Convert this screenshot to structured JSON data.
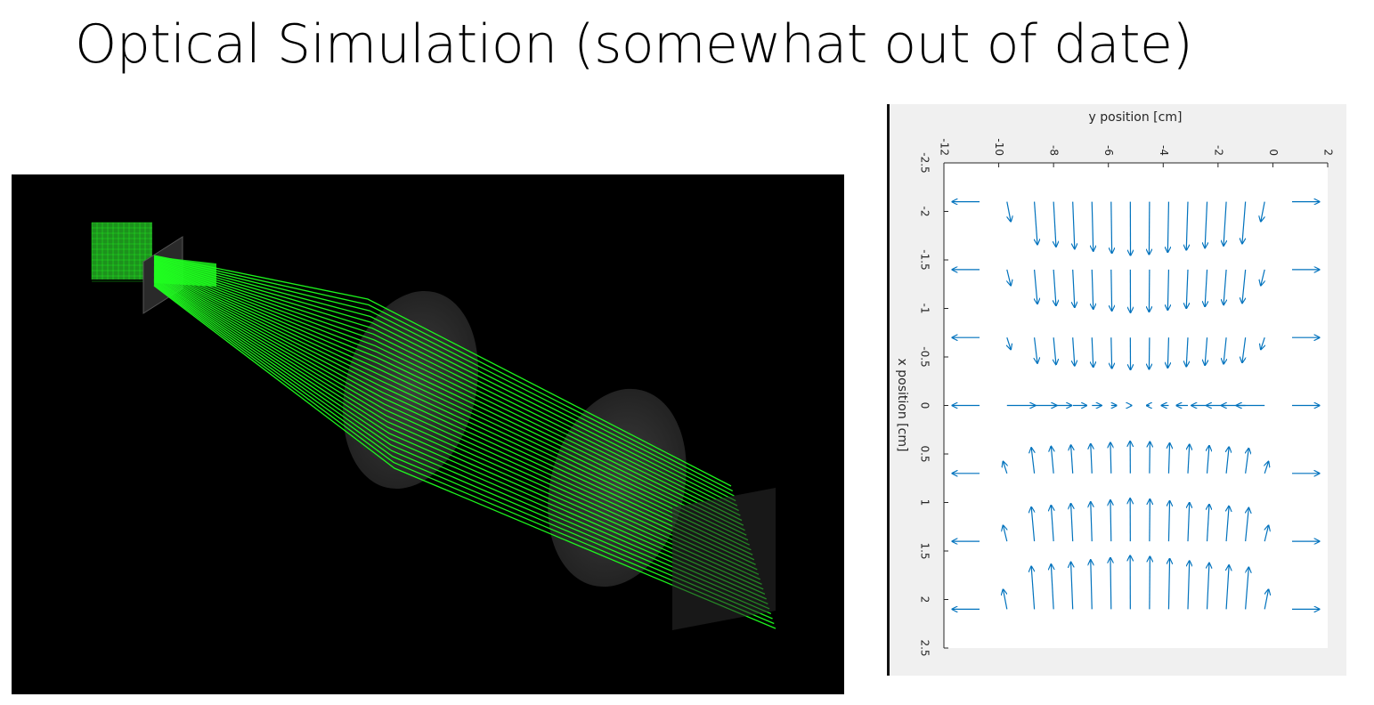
{
  "slide": {
    "title": "Optical Simulation (somewhat out of date)"
  },
  "ray_trace": {
    "background": "#000000",
    "ray_color": "#1fff1f",
    "lens_color": "#3a3a3a"
  },
  "chart_data": {
    "type": "quiver",
    "xlabel": "y position [cm]",
    "ylabel": "x position [cm]",
    "x_axis_position": "top",
    "tick_label_rotation": 90,
    "xlim": [
      -12,
      2
    ],
    "ylim": [
      -2.5,
      2.5
    ],
    "y_reversed": true,
    "xticks": [
      -12,
      -10,
      -8,
      -6,
      -4,
      -2,
      0,
      2
    ],
    "xtick_labels": [
      "-12",
      "-10",
      "-8",
      "-6",
      "-4",
      "-2",
      "0",
      "2"
    ],
    "yticks": [
      -2.5,
      -2,
      -1.5,
      -1,
      -0.5,
      0,
      0.5,
      1,
      1.5,
      2,
      2.5
    ],
    "ytick_labels": [
      "-2.5",
      "-2",
      "-1.5",
      "-1",
      "-0.5",
      "0",
      "0.5",
      "1",
      "1.5",
      "2",
      "2.5"
    ],
    "grid": false,
    "arrow_color": "#0072bd",
    "x_grid": [
      -10.7,
      -9.7,
      -8.7,
      -8,
      -7.3,
      -6.6,
      -5.9,
      -5.2,
      -4.5,
      -3.8,
      -3.1,
      -2.4,
      -1.7,
      -1,
      -0.3,
      0.7
    ],
    "y_grid": [
      -2.1,
      -1.4,
      -0.7,
      0,
      0.7,
      1.4,
      2.1
    ],
    "vector_scale": 1.0
  }
}
